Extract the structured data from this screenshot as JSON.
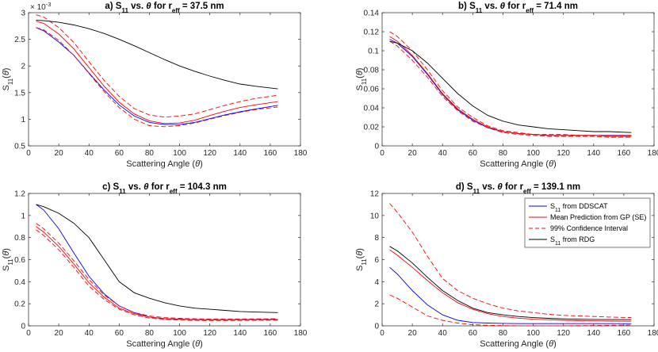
{
  "chart_data": [
    {
      "type": "line",
      "title_prefix": "a) S",
      "title_mid": " vs. ",
      "title_theta": "θ",
      "title_for": " for r",
      "title_eff": "eff",
      "title_value": " =  37.5 nm",
      "xlabel": "Scattering Angle (θ)",
      "ylabel": "S11(θ)",
      "exponent_label": "× 10",
      "exponent_power": "-3",
      "xlim": [
        0,
        180
      ],
      "ylim": [
        0.5,
        3
      ],
      "xticks": [
        0,
        20,
        40,
        60,
        80,
        100,
        120,
        140,
        160,
        180
      ],
      "yticks": [
        0.5,
        1,
        1.5,
        2,
        2.5,
        3
      ],
      "ytick_labels": [
        "0.5",
        "1",
        "1.5",
        "2",
        "2.5",
        "3"
      ],
      "x": [
        5,
        10,
        20,
        30,
        40,
        50,
        60,
        70,
        80,
        90,
        100,
        110,
        120,
        130,
        140,
        150,
        165
      ],
      "series": [
        {
          "name": "S11 from DDSCAT",
          "color": "#0000ff",
          "dash": false,
          "values": [
            2.72,
            2.66,
            2.45,
            2.2,
            1.87,
            1.55,
            1.27,
            1.06,
            0.94,
            0.9,
            0.9,
            0.94,
            1.01,
            1.08,
            1.14,
            1.19,
            1.26
          ]
        },
        {
          "name": "Mean Prediction from GP (SE)",
          "color": "#ff0000",
          "dash": false,
          "values": [
            2.84,
            2.8,
            2.6,
            2.32,
            1.97,
            1.62,
            1.32,
            1.1,
            0.97,
            0.92,
            0.93,
            0.98,
            1.07,
            1.15,
            1.22,
            1.27,
            1.33
          ]
        },
        {
          "name": "99% Confidence Interval (upper)",
          "color": "#ff0000",
          "dash": true,
          "values": [
            2.96,
            2.92,
            2.72,
            2.44,
            2.08,
            1.73,
            1.43,
            1.2,
            1.08,
            1.04,
            1.06,
            1.1,
            1.18,
            1.26,
            1.33,
            1.39,
            1.45
          ]
        },
        {
          "name": "99% Confidence Interval (lower)",
          "color": "#ff0000",
          "dash": true,
          "values": [
            2.72,
            2.68,
            2.48,
            2.2,
            1.86,
            1.52,
            1.22,
            1.0,
            0.88,
            0.86,
            0.88,
            0.93,
            1.0,
            1.07,
            1.13,
            1.18,
            1.23
          ]
        },
        {
          "name": "S11 from RDG",
          "color": "#000000",
          "dash": false,
          "values": [
            2.86,
            2.85,
            2.82,
            2.77,
            2.7,
            2.61,
            2.5,
            2.38,
            2.25,
            2.12,
            2.0,
            1.9,
            1.81,
            1.73,
            1.66,
            1.62,
            1.57
          ]
        }
      ]
    },
    {
      "type": "line",
      "title_prefix": "b) S",
      "title_mid": " vs. ",
      "title_theta": "θ",
      "title_for": " for r",
      "title_eff": "eff",
      "title_value": " =  71.4 nm",
      "xlabel": "Scattering Angle (θ)",
      "ylabel": "S11(θ)",
      "xlim": [
        0,
        180
      ],
      "ylim": [
        0,
        0.14
      ],
      "xticks": [
        0,
        20,
        40,
        60,
        80,
        100,
        120,
        140,
        160,
        180
      ],
      "yticks": [
        0,
        0.02,
        0.04,
        0.06,
        0.08,
        0.1,
        0.12,
        0.14
      ],
      "ytick_labels": [
        "0",
        "0.02",
        "0.04",
        "0.06",
        "0.08",
        "0.1",
        "0.12",
        "0.14"
      ],
      "x": [
        5,
        10,
        20,
        30,
        40,
        50,
        60,
        70,
        80,
        90,
        100,
        110,
        120,
        130,
        140,
        150,
        165
      ],
      "series": [
        {
          "name": "S11 from DDSCAT",
          "color": "#0000ff",
          "dash": false,
          "values": [
            0.112,
            0.108,
            0.094,
            0.075,
            0.054,
            0.038,
            0.027,
            0.019,
            0.015,
            0.013,
            0.012,
            0.011,
            0.011,
            0.011,
            0.011,
            0.011,
            0.011
          ]
        },
        {
          "name": "Mean Prediction from GP (SE)",
          "color": "#ff0000",
          "dash": false,
          "values": [
            0.115,
            0.11,
            0.095,
            0.076,
            0.055,
            0.039,
            0.028,
            0.02,
            0.015,
            0.013,
            0.012,
            0.011,
            0.011,
            0.011,
            0.011,
            0.01,
            0.01
          ]
        },
        {
          "name": "99% Confidence Interval (upper)",
          "color": "#ff0000",
          "dash": true,
          "values": [
            0.12,
            0.115,
            0.1,
            0.08,
            0.058,
            0.041,
            0.03,
            0.021,
            0.016,
            0.014,
            0.012,
            0.012,
            0.012,
            0.011,
            0.011,
            0.011,
            0.011
          ]
        },
        {
          "name": "99% Confidence Interval (lower)",
          "color": "#ff0000",
          "dash": true,
          "values": [
            0.11,
            0.105,
            0.09,
            0.072,
            0.052,
            0.037,
            0.026,
            0.019,
            0.014,
            0.012,
            0.011,
            0.01,
            0.01,
            0.01,
            0.01,
            0.009,
            0.009
          ]
        },
        {
          "name": "S11 from RDG",
          "color": "#000000",
          "dash": false,
          "values": [
            0.11,
            0.108,
            0.1,
            0.087,
            0.071,
            0.055,
            0.042,
            0.032,
            0.026,
            0.022,
            0.02,
            0.018,
            0.017,
            0.016,
            0.015,
            0.015,
            0.014
          ]
        }
      ]
    },
    {
      "type": "line",
      "title_prefix": "c) S",
      "title_mid": " vs. ",
      "title_theta": "θ",
      "title_for": " for r",
      "title_eff": "eff",
      "title_value": " =  104.3 nm",
      "xlabel": "Scattering Angle (θ)",
      "ylabel": "S11(θ)",
      "xlim": [
        0,
        180
      ],
      "ylim": [
        0,
        1.2
      ],
      "xticks": [
        0,
        20,
        40,
        60,
        80,
        100,
        120,
        140,
        160,
        180
      ],
      "yticks": [
        0,
        0.2,
        0.4,
        0.6,
        0.8,
        1,
        1.2
      ],
      "ytick_labels": [
        "0",
        "0.2",
        "0.4",
        "0.6",
        "0.8",
        "1",
        "1.2"
      ],
      "x": [
        5,
        10,
        20,
        30,
        40,
        50,
        60,
        70,
        80,
        90,
        100,
        110,
        120,
        130,
        140,
        150,
        165
      ],
      "series": [
        {
          "name": "S11 from DDSCAT",
          "color": "#0000ff",
          "dash": false,
          "values": [
            1.1,
            1.05,
            0.88,
            0.66,
            0.45,
            0.29,
            0.18,
            0.12,
            0.08,
            0.065,
            0.06,
            0.057,
            0.056,
            0.056,
            0.057,
            0.057,
            0.058
          ]
        },
        {
          "name": "Mean Prediction from GP (SE)",
          "color": "#ff0000",
          "dash": false,
          "values": [
            0.9,
            0.85,
            0.72,
            0.56,
            0.39,
            0.26,
            0.16,
            0.11,
            0.08,
            0.065,
            0.06,
            0.056,
            0.055,
            0.055,
            0.055,
            0.056,
            0.057
          ]
        },
        {
          "name": "99% Confidence Interval (upper)",
          "color": "#ff0000",
          "dash": true,
          "values": [
            0.93,
            0.88,
            0.75,
            0.59,
            0.42,
            0.28,
            0.18,
            0.12,
            0.09,
            0.075,
            0.068,
            0.064,
            0.062,
            0.062,
            0.062,
            0.063,
            0.064
          ]
        },
        {
          "name": "99% Confidence Interval (lower)",
          "color": "#ff0000",
          "dash": true,
          "values": [
            0.87,
            0.82,
            0.69,
            0.53,
            0.36,
            0.24,
            0.15,
            0.1,
            0.07,
            0.058,
            0.052,
            0.049,
            0.048,
            0.048,
            0.049,
            0.05,
            0.051
          ]
        },
        {
          "name": "S11 from RDG",
          "color": "#000000",
          "dash": false,
          "values": [
            1.1,
            1.08,
            1.02,
            0.93,
            0.8,
            0.6,
            0.4,
            0.3,
            0.25,
            0.21,
            0.18,
            0.16,
            0.15,
            0.14,
            0.13,
            0.125,
            0.12
          ]
        }
      ]
    },
    {
      "type": "line",
      "title_prefix": "d) S",
      "title_mid": " vs. ",
      "title_theta": "θ",
      "title_for": " for r",
      "title_eff": "eff",
      "title_value": " =  139.1 nm",
      "xlabel": "Scattering Angle (θ)",
      "ylabel": "S11(θ)",
      "xlim": [
        0,
        180
      ],
      "ylim": [
        0,
        12
      ],
      "xticks": [
        0,
        20,
        40,
        60,
        80,
        100,
        120,
        140,
        160,
        180
      ],
      "yticks": [
        0,
        2,
        4,
        6,
        8,
        10,
        12
      ],
      "ytick_labels": [
        "0",
        "2",
        "4",
        "6",
        "8",
        "10",
        "12"
      ],
      "legend_location": "top-right",
      "x": [
        5,
        10,
        20,
        30,
        40,
        50,
        60,
        70,
        80,
        90,
        100,
        110,
        120,
        130,
        140,
        150,
        165
      ],
      "series": [
        {
          "name": "S11 from DDSCAT",
          "color": "#0000ff",
          "dash": false,
          "values": [
            5.3,
            4.7,
            3.2,
            1.9,
            1.0,
            0.5,
            0.3,
            0.25,
            0.22,
            0.2,
            0.2,
            0.2,
            0.2,
            0.2,
            0.2,
            0.2,
            0.2
          ]
        },
        {
          "name": "Mean Prediction from GP (SE)",
          "color": "#ff0000",
          "dash": false,
          "values": [
            6.9,
            6.4,
            5.3,
            4.1,
            3.0,
            2.1,
            1.5,
            1.1,
            0.85,
            0.7,
            0.6,
            0.55,
            0.5,
            0.47,
            0.45,
            0.43,
            0.42
          ]
        },
        {
          "name": "99% Confidence Interval (upper)",
          "color": "#ff0000",
          "dash": true,
          "values": [
            11.1,
            10.3,
            8.5,
            6.3,
            4.3,
            3.2,
            2.5,
            2.0,
            1.6,
            1.35,
            1.2,
            1.05,
            0.95,
            0.9,
            0.85,
            0.8,
            0.75
          ]
        },
        {
          "name": "99% Confidence Interval (lower)",
          "color": "#ff0000",
          "dash": true,
          "values": [
            2.8,
            2.5,
            1.7,
            0.9,
            0.5,
            0.25,
            0.1,
            0.05,
            0.02,
            0.01,
            0.01,
            0.01,
            0.01,
            0.02,
            0.03,
            0.05,
            0.08
          ]
        },
        {
          "name": "S11 from RDG",
          "color": "#000000",
          "dash": false,
          "values": [
            7.2,
            6.8,
            5.7,
            4.4,
            3.2,
            2.3,
            1.6,
            1.2,
            1.0,
            0.85,
            0.75,
            0.68,
            0.63,
            0.6,
            0.58,
            0.57,
            0.56
          ]
        }
      ],
      "legend": [
        {
          "text": "S",
          "sub": "11",
          "suffix": " from DDSCAT",
          "color": "#0000ff",
          "dash": false
        },
        {
          "text": "Mean Prediction from GP (SE)",
          "sub": "",
          "suffix": "",
          "color": "#ff0000",
          "dash": false
        },
        {
          "text": "99% Confidence Interval",
          "sub": "",
          "suffix": "",
          "color": "#ff0000",
          "dash": true
        },
        {
          "text": "S",
          "sub": "11",
          "suffix": " from RDG",
          "color": "#000000",
          "dash": false
        }
      ]
    }
  ]
}
